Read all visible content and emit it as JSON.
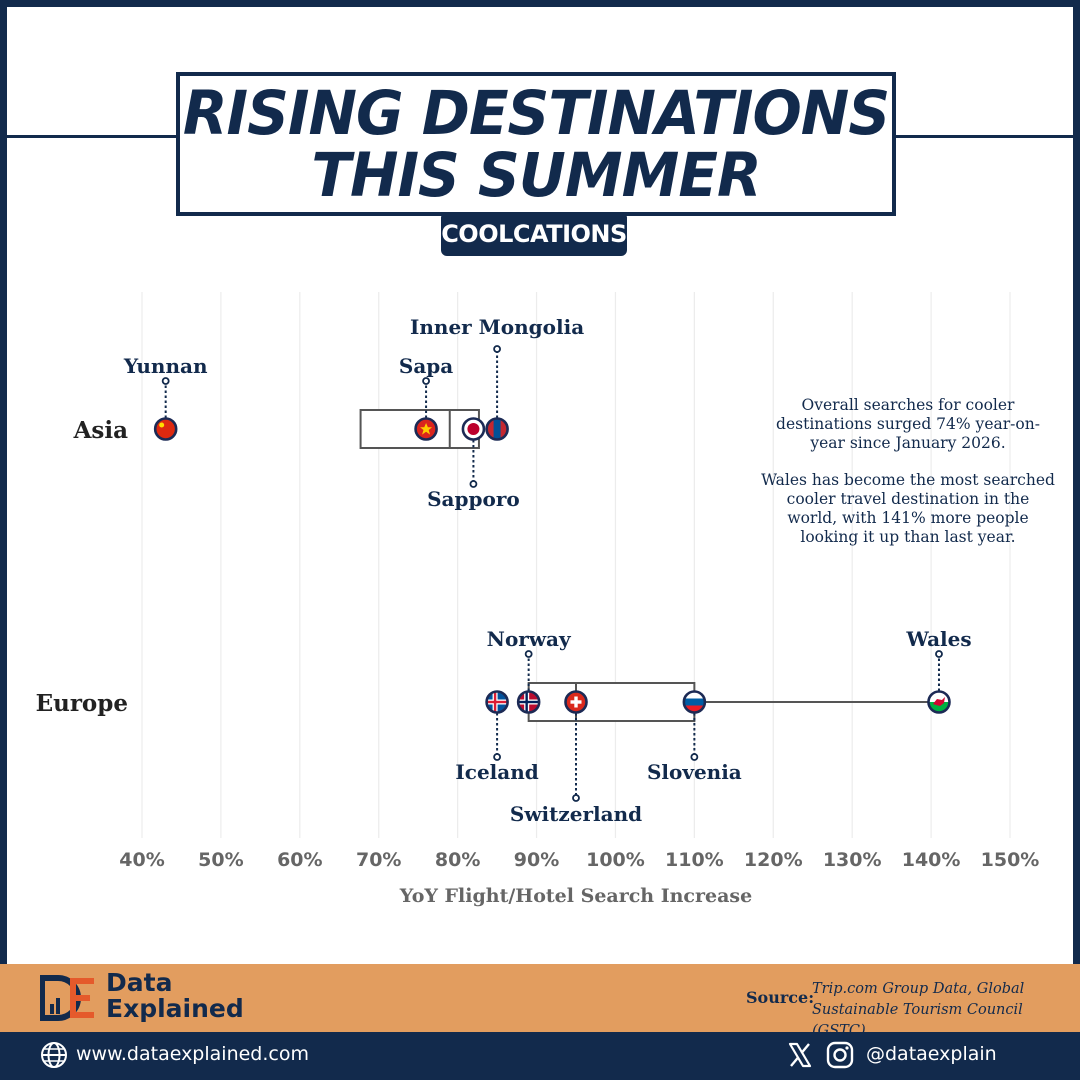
{
  "header": {
    "title_line1": "RISING DESTINATIONS",
    "title_line2": "THIS SUMMER",
    "subtitle": "COOLCATIONS"
  },
  "chart_data": {
    "type": "box-strip",
    "xlabel": "YoY Flight/Hotel Search Increase",
    "xlim": [
      40,
      150
    ],
    "xticks": [
      40,
      50,
      60,
      70,
      80,
      90,
      100,
      110,
      120,
      130,
      140,
      150
    ],
    "tick_suffix": "%",
    "grid": true,
    "categories": [
      "Asia",
      "Europe"
    ],
    "boxes": [
      {
        "category": "Asia",
        "q1": 67.7,
        "median": 79,
        "q3": 82.7,
        "whisker_low": null,
        "whisker_high": null
      },
      {
        "category": "Europe",
        "q1": 89,
        "median": 95,
        "q3": 110,
        "whisker_low": null,
        "whisker_high": 141
      }
    ],
    "points": [
      {
        "category": "Asia",
        "name": "Yunnan",
        "value": 43,
        "label_pos": "above",
        "flag": "china"
      },
      {
        "category": "Asia",
        "name": "Sapa",
        "value": 76,
        "label_pos": "above",
        "flag": "vietnam"
      },
      {
        "category": "Asia",
        "name": "Sapporo",
        "value": 82,
        "label_pos": "below",
        "flag": "japan"
      },
      {
        "category": "Asia",
        "name": "Inner Mongolia",
        "value": 85,
        "label_pos": "above-high",
        "flag": "mongolia"
      },
      {
        "category": "Europe",
        "name": "Iceland",
        "value": 85,
        "label_pos": "below",
        "flag": "iceland"
      },
      {
        "category": "Europe",
        "name": "Norway",
        "value": 89,
        "label_pos": "above",
        "flag": "norway"
      },
      {
        "category": "Europe",
        "name": "Switzerland",
        "value": 95,
        "label_pos": "below-low",
        "flag": "switzerland"
      },
      {
        "category": "Europe",
        "name": "Slovenia",
        "value": 110,
        "label_pos": "below",
        "flag": "slovenia"
      },
      {
        "category": "Europe",
        "name": "Wales",
        "value": 141,
        "label_pos": "above",
        "flag": "wales"
      }
    ]
  },
  "note": {
    "para1": "Overall searches for cooler destinations surged 74% year-on-year since January 2026.",
    "para2": "Wales has become the most searched cooler travel destination in the world, with 141% more people looking it up than last year."
  },
  "footer": {
    "brand_line1": "Data",
    "brand_line2": "Explained",
    "source_label": "Source:",
    "source_text": "Trip.com Group Data, Global Sustainable Tourism Council (GSTC)",
    "website": "www.dataexplained.com",
    "handle": "@dataexplain"
  },
  "colors": {
    "navy": "#122a4c",
    "orange": "#e29d5f",
    "gridline": "#ececec",
    "box_stroke": "#555555"
  },
  "icons": [
    "globe-icon",
    "x-icon",
    "instagram-icon",
    "logo-icon"
  ]
}
